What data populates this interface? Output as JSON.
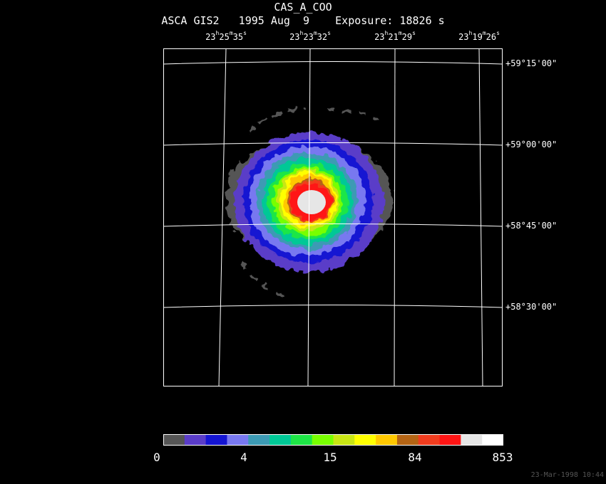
{
  "header": {
    "object": "CAS_A_COO",
    "info": "ASCA GIS2   1995 Aug  9    Exposure: 18826 s"
  },
  "ra_labels": [
    {
      "h": "23",
      "m": "25",
      "s": "35"
    },
    {
      "h": "23",
      "m": "23",
      "s": "32"
    },
    {
      "h": "23",
      "m": "21",
      "s": "29"
    },
    {
      "h": "23",
      "m": "19",
      "s": "26"
    }
  ],
  "dec_labels": [
    "+59°15'00\"",
    "+59°00'00\"",
    "+58°45'00\"",
    "+58°30'00\""
  ],
  "colorbar": {
    "colors": [
      "#555555",
      "#5a3cc8",
      "#1414d2",
      "#7878f0",
      "#3c9ab4",
      "#00c896",
      "#1ee646",
      "#78ff00",
      "#c8e614",
      "#ffff00",
      "#ffc800",
      "#b46414",
      "#f03c1e",
      "#ff1414",
      "#e6e6e6",
      "#ffffff"
    ],
    "labels": [
      "0",
      "4",
      "15",
      "84",
      "853"
    ]
  },
  "timestamp": "23-Mar-1998 10:44"
}
